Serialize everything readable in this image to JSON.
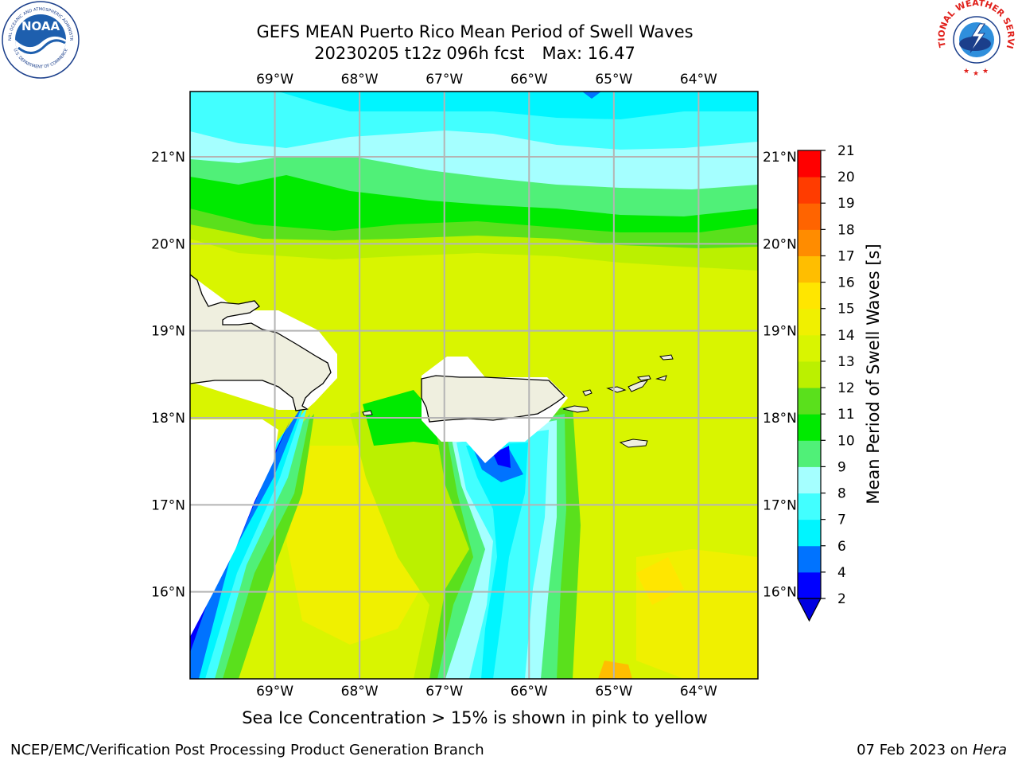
{
  "title": {
    "line1": "GEFS MEAN Puerto Rico Mean Period of Swell Waves",
    "line2_run": "20230205 t12z 096h fcst",
    "line2_max": "Max: 16.47"
  },
  "subtitle": "Sea Ice Concentration > 15% is shown in pink to yellow",
  "footer": {
    "left": "NCEP/EMC/Verification Post Processing Product Generation Branch",
    "date": "07 Feb 2023 on ",
    "machine": "Hera"
  },
  "logos": {
    "noaa": "NOAA",
    "noaa_ring_top": "NATIONAL OCEANIC AND ATMOSPHERIC ADMINISTRATION",
    "noaa_ring_bottom": "U.S. DEPARTMENT OF COMMERCE",
    "nws_ring": "NATIONAL WEATHER SERVICE"
  },
  "map": {
    "lon_ticks": [
      "69°W",
      "68°W",
      "67°W",
      "66°W",
      "65°W",
      "64°W"
    ],
    "lat_ticks": [
      "21°N",
      "20°N",
      "19°N",
      "18°N",
      "17°N",
      "16°N"
    ],
    "lon_values": [
      -69,
      -68,
      -67,
      -66,
      -65,
      -64
    ],
    "lat_values": [
      21,
      20,
      19,
      18,
      17,
      16
    ],
    "extent": {
      "lon_min": -70.0,
      "lon_max": -63.3,
      "lat_min": 15.0,
      "lat_max": 21.75
    },
    "grid": true,
    "land_color": "#efefdf",
    "coast_color": "#000000",
    "nodata_color": "#ffffff"
  },
  "colorbar": {
    "label": "Mean Period of Swell Waves [s]",
    "ticks": [
      "21",
      "20",
      "19",
      "18",
      "17",
      "16",
      "15",
      "14",
      "13",
      "12",
      "11",
      "10",
      "9",
      "8",
      "7",
      "6",
      "4",
      "2"
    ],
    "levels": [
      2,
      4,
      6,
      7,
      8,
      9,
      10,
      11,
      12,
      13,
      14,
      15,
      16,
      17,
      18,
      19,
      20,
      21
    ],
    "colors": [
      "#0000ff",
      "#0073ff",
      "#00f5ff",
      "#42ffff",
      "#a5ffff",
      "#50f078",
      "#00ea00",
      "#5ae01c",
      "#bbf000",
      "#d9f500",
      "#f0f000",
      "#ffe600",
      "#ffbe00",
      "#ff8c00",
      "#ff6400",
      "#ff3c00",
      "#ff0000"
    ],
    "under_color": "#0000e0",
    "extend": "min"
  }
}
